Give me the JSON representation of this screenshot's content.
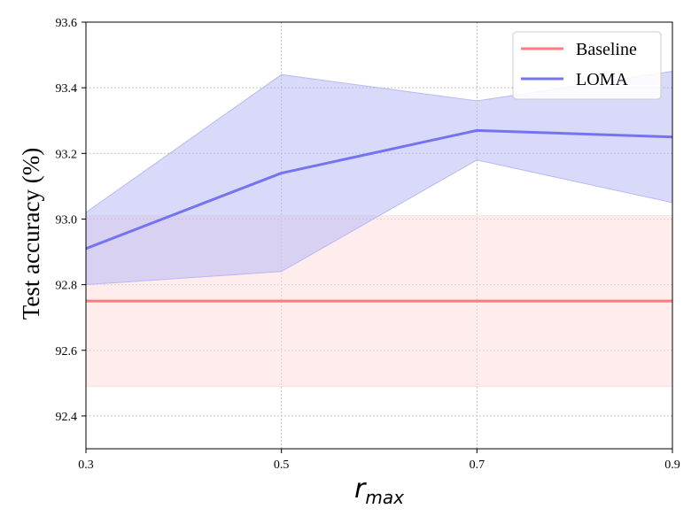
{
  "chart_data": {
    "type": "line",
    "x": [
      0.3,
      0.5,
      0.7,
      0.9
    ],
    "x_tick_labels": [
      "0.3",
      "0.5",
      "0.7",
      "0.9"
    ],
    "y_tick_labels": [
      "92.4",
      "92.6",
      "92.8",
      "93.0",
      "93.2",
      "93.4",
      "93.6"
    ],
    "y_ticks": [
      92.4,
      92.6,
      92.8,
      93.0,
      93.2,
      93.4,
      93.6
    ],
    "xlim": [
      0.3,
      0.9
    ],
    "ylim": [
      92.3,
      93.6
    ],
    "ylabel": "Test accuracy (%)",
    "xlabel_main": "r",
    "xlabel_sub": "max",
    "grid": true,
    "grid_style": "dotted",
    "legend_position": "top-right",
    "series": [
      {
        "name": "Baseline",
        "color": "#ff7b7b",
        "band_color": "#ffdede",
        "values": [
          92.75,
          92.75,
          92.75,
          92.75
        ],
        "lower": [
          92.49,
          92.49,
          92.49,
          92.49
        ],
        "upper": [
          93.01,
          93.01,
          93.01,
          93.01
        ]
      },
      {
        "name": "LOMA",
        "color": "#7474f0",
        "band_color": "#b9b9f5",
        "values": [
          92.91,
          93.14,
          93.27,
          93.25
        ],
        "lower": [
          92.8,
          92.84,
          93.18,
          93.05
        ],
        "upper": [
          93.02,
          93.44,
          93.36,
          93.45
        ]
      }
    ]
  }
}
